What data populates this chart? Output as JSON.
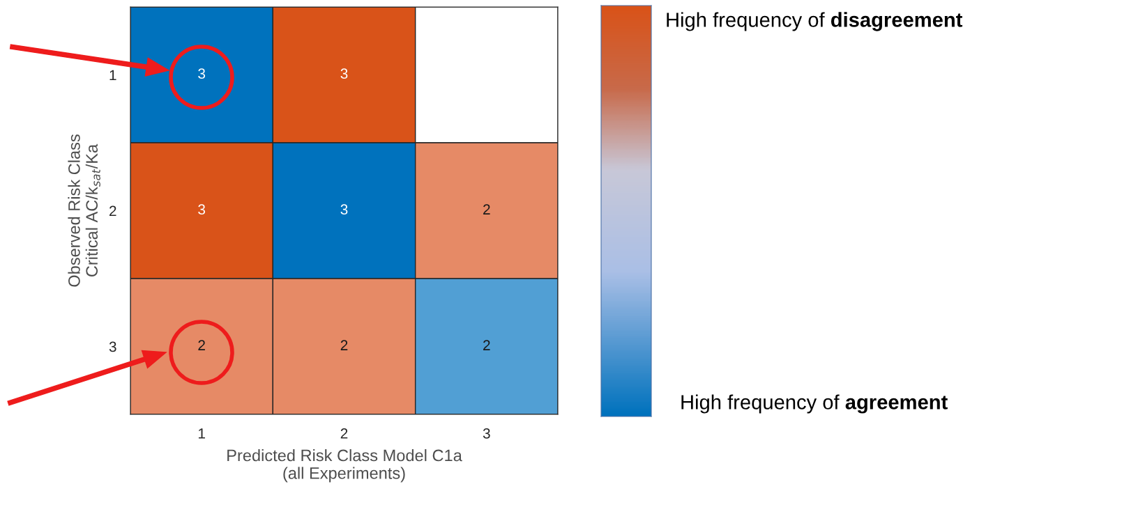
{
  "chart_data": {
    "type": "heatmap",
    "categories": [
      "1",
      "2",
      "3"
    ],
    "y_categories": [
      "1",
      "2",
      "3"
    ],
    "xlabel": "Predicted Risk Class Model C1a\n(all Experiments)",
    "ylabel": "Observed Risk Class\nCritical AC/k$_{sat}$/Ka",
    "cells": [
      [
        3,
        3,
        null
      ],
      [
        3,
        3,
        2
      ],
      [
        2,
        2,
        2
      ]
    ],
    "colors": [
      [
        "#0072bd",
        "#d95319",
        null
      ],
      [
        "#d95319",
        "#0072bd",
        "#e68a66"
      ],
      [
        "#e68a66",
        "#e68a66",
        "#519fd4"
      ]
    ],
    "data_labels": true,
    "annotations": [
      "High frequency of disagreement",
      "High frequency of agreement"
    ]
  }
}
